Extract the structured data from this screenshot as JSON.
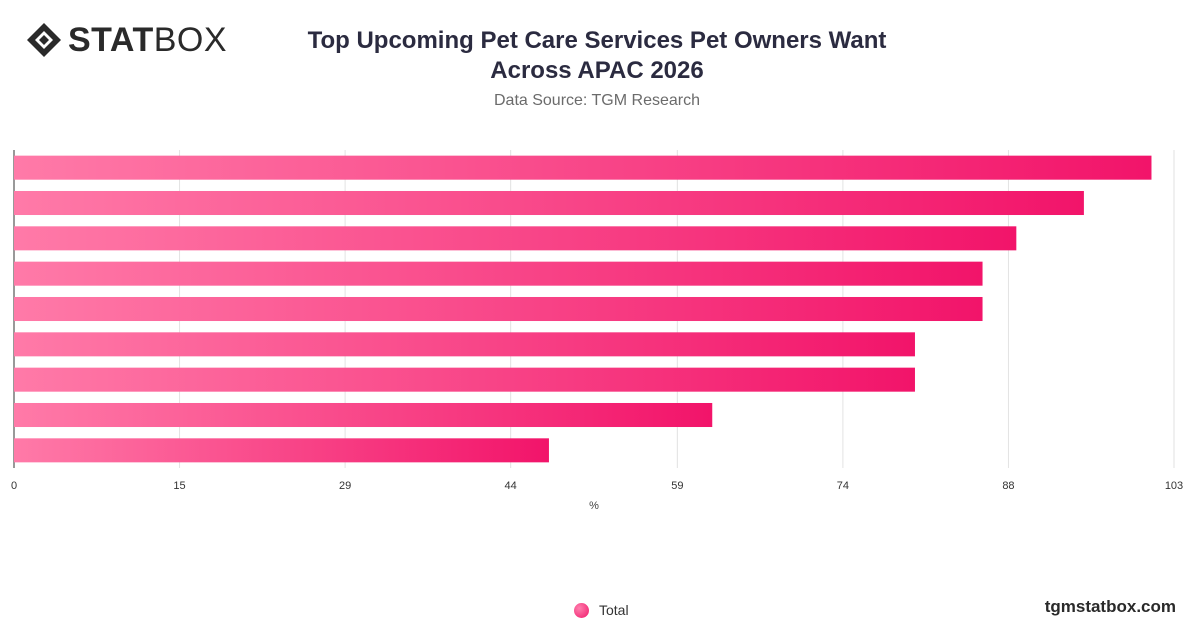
{
  "brand": {
    "logo_bold": "STAT",
    "logo_light": "BOX",
    "url": "tgmstatbox.com"
  },
  "colors": {
    "bar_start": "#ff7aa8",
    "bar_end": "#f2146a",
    "grid": "#e2e2e2",
    "axis": "#333333"
  },
  "chart_data": {
    "type": "bar",
    "orientation": "horizontal",
    "title": "Top Upcoming Pet Care Services Pet Owners Want Across APAC 2026",
    "subtitle": "Data Source: TGM Research",
    "xlabel": "%",
    "ylabel": "",
    "xlim": [
      0,
      103
    ],
    "x_ticks": [
      "0",
      "15",
      "29",
      "44",
      "59",
      "74",
      "88",
      "103"
    ],
    "x_tick_values": [
      0,
      14.7,
      29.4,
      44.1,
      58.9,
      73.6,
      88.3,
      103
    ],
    "grid": true,
    "legend_position": "bottom",
    "categories": [
      "",
      "",
      "",
      "",
      "",
      "",
      "",
      "",
      ""
    ],
    "series": [
      {
        "name": "Total",
        "values": [
          101,
          95,
          89,
          86,
          86,
          80,
          80,
          62,
          47.5
        ]
      }
    ]
  }
}
